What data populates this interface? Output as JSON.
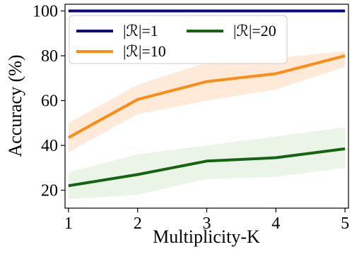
{
  "chart_data": {
    "type": "line",
    "xlabel": "Multiplicity-K",
    "ylabel": "Accuracy (%)",
    "x": [
      1,
      2,
      3,
      4,
      5
    ],
    "xlim": [
      0.95,
      5.05
    ],
    "ylim": [
      12,
      103
    ],
    "xticks": [
      "1",
      "2",
      "3",
      "4",
      "5"
    ],
    "yticks": [
      "20",
      "40",
      "60",
      "80",
      "100"
    ],
    "grid": false,
    "legend_position": "top-left, inside, two columns",
    "series": [
      {
        "name": "|ℛ|=1",
        "color": "#0b0b7a",
        "values": [
          100,
          100,
          100,
          100,
          100
        ],
        "band_upper": [
          100,
          100,
          100,
          100,
          100
        ],
        "band_lower": [
          100,
          100,
          100,
          100,
          100
        ],
        "band_color": "#0b0b7a"
      },
      {
        "name": "|ℛ|=10",
        "color": "#ff8c14",
        "values": [
          43.5,
          60.5,
          68.5,
          72,
          80
        ],
        "band_upper": [
          50,
          67,
          77,
          79,
          82
        ],
        "band_lower": [
          37,
          54,
          60,
          65,
          75
        ],
        "band_color": "#ffe2cc"
      },
      {
        "name": "|ℛ|=20",
        "color": "#146414",
        "values": [
          22,
          27,
          33,
          34.5,
          38.5
        ],
        "band_upper": [
          28,
          36,
          40,
          44,
          48
        ],
        "band_lower": [
          16,
          18,
          25,
          26,
          30
        ],
        "band_color": "#e3f1e0"
      }
    ]
  }
}
